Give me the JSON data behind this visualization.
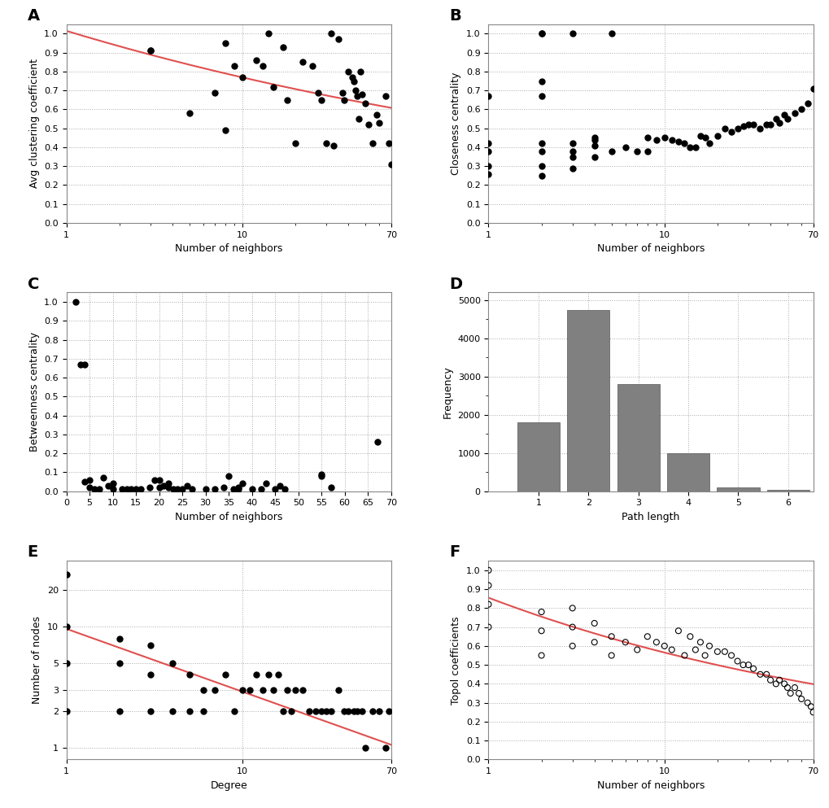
{
  "A": {
    "x": [
      3,
      3,
      5,
      7,
      8,
      8,
      9,
      10,
      12,
      13,
      14,
      15,
      17,
      18,
      20,
      22,
      25,
      27,
      28,
      30,
      32,
      33,
      35,
      37,
      38,
      40,
      42,
      43,
      44,
      45,
      46,
      47,
      48,
      50,
      52,
      55,
      58,
      60,
      65,
      68,
      70
    ],
    "y": [
      0.91,
      0.91,
      0.58,
      0.69,
      0.95,
      0.49,
      0.83,
      0.77,
      0.86,
      0.83,
      1.0,
      0.72,
      0.93,
      0.65,
      0.42,
      0.85,
      0.83,
      0.69,
      0.65,
      0.42,
      1.0,
      0.41,
      0.97,
      0.69,
      0.65,
      0.8,
      0.77,
      0.75,
      0.7,
      0.67,
      0.55,
      0.8,
      0.68,
      0.63,
      0.52,
      0.42,
      0.57,
      0.53,
      0.67,
      0.42,
      0.31
    ],
    "fit_x": [
      1,
      70
    ],
    "xlabel": "Number of neighbors",
    "ylabel": "Avg clustering coefficient",
    "yticks": [
      0.0,
      0.1,
      0.2,
      0.3,
      0.4,
      0.5,
      0.6,
      0.7,
      0.8,
      0.9,
      1.0
    ]
  },
  "B": {
    "x": [
      1,
      1,
      1,
      1,
      1,
      2,
      2,
      2,
      2,
      2,
      2,
      2,
      2,
      3,
      3,
      3,
      3,
      3,
      4,
      4,
      4,
      4,
      5,
      5,
      6,
      7,
      8,
      8,
      9,
      10,
      11,
      12,
      13,
      14,
      15,
      16,
      17,
      18,
      20,
      22,
      24,
      26,
      28,
      30,
      32,
      35,
      38,
      40,
      43,
      45,
      48,
      50,
      55,
      60,
      65,
      70
    ],
    "y": [
      0.67,
      0.42,
      0.38,
      0.3,
      0.26,
      1.0,
      1.0,
      0.75,
      0.67,
      0.42,
      0.38,
      0.3,
      0.25,
      1.0,
      0.42,
      0.38,
      0.35,
      0.29,
      0.45,
      0.44,
      0.41,
      0.35,
      1.0,
      0.38,
      0.4,
      0.38,
      0.45,
      0.38,
      0.44,
      0.45,
      0.44,
      0.43,
      0.42,
      0.4,
      0.4,
      0.46,
      0.45,
      0.42,
      0.46,
      0.5,
      0.48,
      0.5,
      0.51,
      0.52,
      0.52,
      0.5,
      0.52,
      0.52,
      0.55,
      0.53,
      0.57,
      0.55,
      0.58,
      0.6,
      0.63,
      0.71
    ],
    "xlabel": "Number of neighbors",
    "ylabel": "Closeness centrality",
    "yticks": [
      0.0,
      0.1,
      0.2,
      0.3,
      0.4,
      0.5,
      0.6,
      0.7,
      0.8,
      0.9,
      1.0
    ]
  },
  "C": {
    "x": [
      2,
      3,
      4,
      4,
      5,
      5,
      6,
      7,
      8,
      9,
      10,
      10,
      12,
      13,
      14,
      15,
      16,
      18,
      19,
      20,
      20,
      21,
      22,
      22,
      23,
      24,
      25,
      26,
      27,
      30,
      32,
      34,
      35,
      36,
      37,
      37,
      38,
      40,
      42,
      43,
      45,
      46,
      47,
      55,
      55,
      57,
      67
    ],
    "y": [
      1.0,
      0.67,
      0.67,
      0.05,
      0.06,
      0.02,
      0.01,
      0.01,
      0.07,
      0.03,
      0.01,
      0.04,
      0.01,
      0.01,
      0.01,
      0.01,
      0.01,
      0.02,
      0.06,
      0.06,
      0.02,
      0.03,
      0.04,
      0.02,
      0.01,
      0.01,
      0.01,
      0.03,
      0.01,
      0.01,
      0.01,
      0.02,
      0.08,
      0.01,
      0.01,
      0.02,
      0.04,
      0.01,
      0.01,
      0.04,
      0.01,
      0.03,
      0.01,
      0.09,
      0.08,
      0.02,
      0.26
    ],
    "xlabel": "Number of neighbors",
    "ylabel": "Betweenness centrality",
    "yticks": [
      0.0,
      0.1,
      0.2,
      0.3,
      0.4,
      0.5,
      0.6,
      0.7,
      0.8,
      0.9,
      1.0
    ],
    "xlim": [
      0,
      70
    ],
    "xticks": [
      0,
      5,
      10,
      15,
      20,
      25,
      30,
      35,
      40,
      45,
      50,
      55,
      60,
      65,
      70
    ]
  },
  "D": {
    "bins": [
      0.5,
      1.5,
      2.5,
      3.5,
      4.5,
      5.5,
      6.5
    ],
    "heights": [
      1800,
      4750,
      2800,
      1000,
      100,
      30
    ],
    "xlabel": "Path length",
    "ylabel": "Frequency",
    "bar_color": "#808080",
    "xticks": [
      1,
      2,
      3,
      4,
      5,
      6
    ],
    "xlim": [
      0,
      6.5
    ]
  },
  "E": {
    "x": [
      1,
      1,
      1,
      1,
      2,
      2,
      2,
      3,
      3,
      3,
      4,
      4,
      5,
      5,
      6,
      6,
      7,
      8,
      9,
      10,
      11,
      12,
      13,
      14,
      15,
      16,
      17,
      18,
      19,
      20,
      22,
      24,
      26,
      28,
      30,
      32,
      35,
      38,
      40,
      43,
      45,
      48,
      50,
      55,
      60,
      65,
      68
    ],
    "y": [
      27,
      10,
      5,
      2,
      8,
      5,
      2,
      7,
      4,
      2,
      5,
      2,
      4,
      2,
      3,
      2,
      3,
      4,
      2,
      3,
      3,
      4,
      3,
      4,
      3,
      4,
      2,
      3,
      2,
      3,
      3,
      2,
      2,
      2,
      2,
      2,
      3,
      2,
      2,
      2,
      2,
      2,
      1,
      2,
      2,
      1,
      2
    ],
    "xlabel": "Degree",
    "ylabel": "Number of nodes",
    "yticks": [
      1,
      2,
      3,
      5,
      10,
      20
    ],
    "ylim": [
      1,
      35
    ]
  },
  "F": {
    "x": [
      1,
      1,
      1,
      1,
      2,
      2,
      2,
      3,
      3,
      3,
      4,
      4,
      5,
      5,
      6,
      7,
      8,
      9,
      10,
      11,
      12,
      13,
      14,
      15,
      16,
      17,
      18,
      20,
      22,
      24,
      26,
      28,
      30,
      32,
      35,
      38,
      40,
      43,
      45,
      48,
      50,
      52,
      55,
      58,
      60,
      65,
      68,
      70
    ],
    "y": [
      1.0,
      0.92,
      0.82,
      0.7,
      0.78,
      0.68,
      0.55,
      0.8,
      0.7,
      0.6,
      0.72,
      0.62,
      0.65,
      0.55,
      0.62,
      0.58,
      0.65,
      0.62,
      0.6,
      0.58,
      0.68,
      0.55,
      0.65,
      0.58,
      0.62,
      0.55,
      0.6,
      0.57,
      0.57,
      0.55,
      0.52,
      0.5,
      0.5,
      0.48,
      0.45,
      0.45,
      0.42,
      0.4,
      0.42,
      0.4,
      0.38,
      0.35,
      0.38,
      0.35,
      0.32,
      0.3,
      0.28,
      0.25
    ],
    "xlabel": "Number of neighbors",
    "ylabel": "Topol coefficients",
    "yticks": [
      0.0,
      0.1,
      0.2,
      0.3,
      0.4,
      0.5,
      0.6,
      0.7,
      0.8,
      0.9,
      1.0
    ]
  },
  "panel_labels": [
    "A",
    "B",
    "C",
    "D",
    "E",
    "F"
  ],
  "fit_color": "#e05050",
  "dot_color": "#000000",
  "background_color": "#ffffff",
  "grid_color": "#aaaaaa"
}
